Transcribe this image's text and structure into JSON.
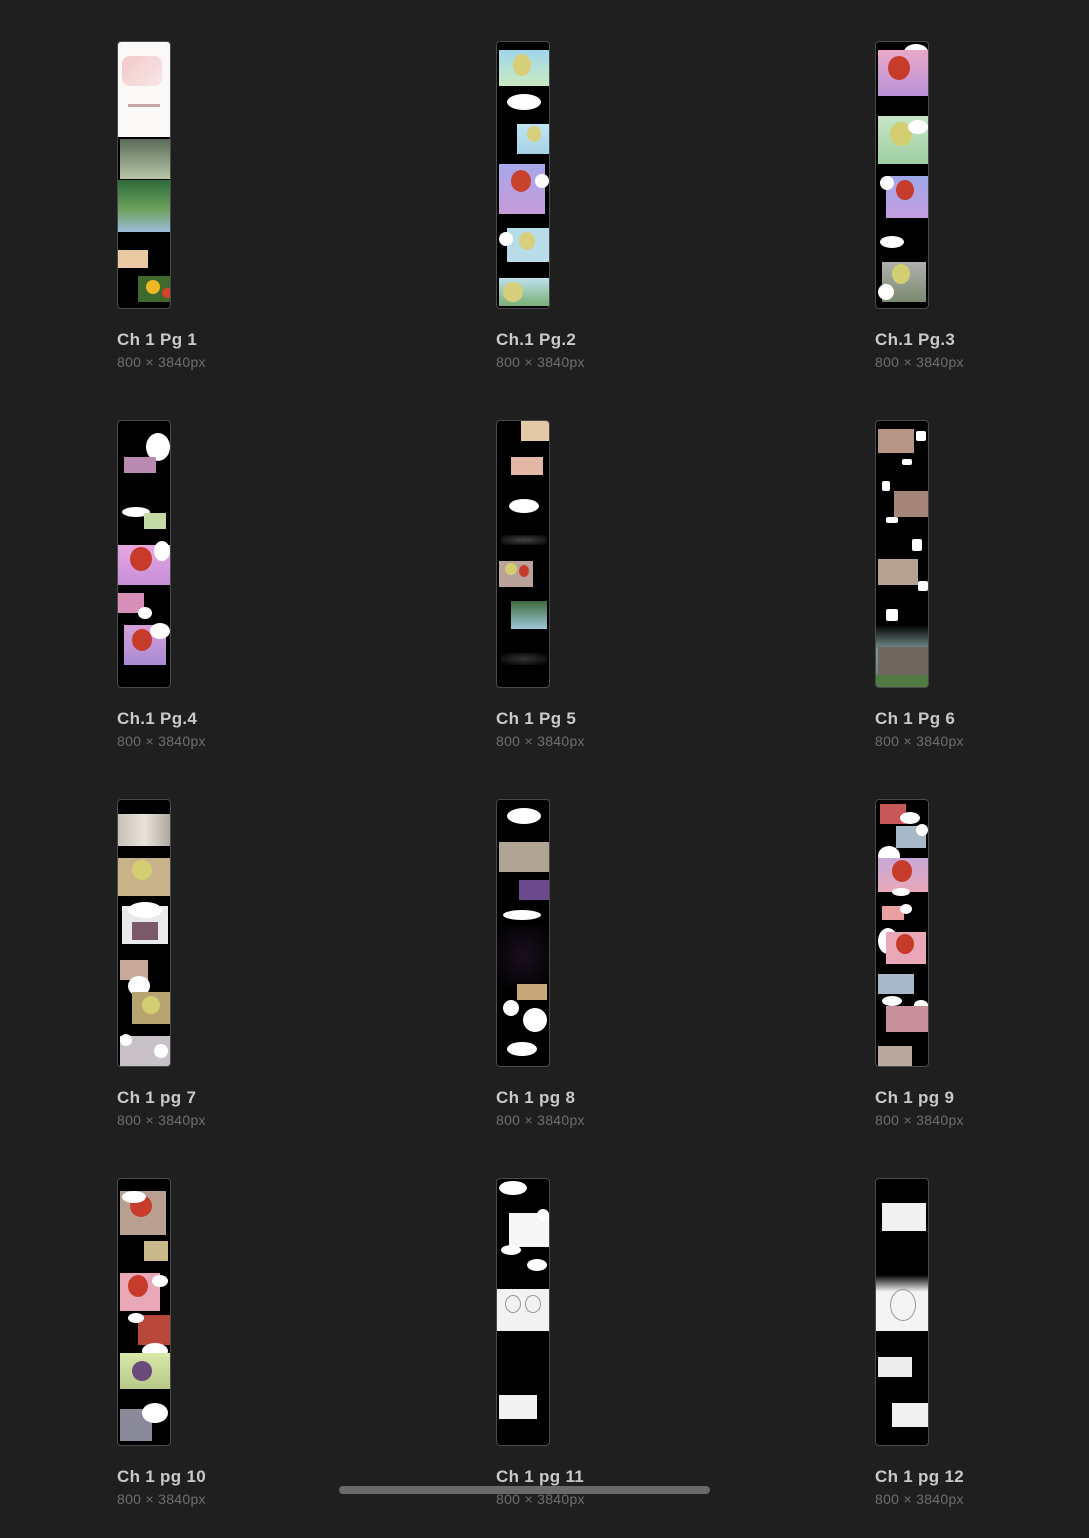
{
  "pages": [
    {
      "title": "Ch 1 Pg 1",
      "dims": "800 × 3840px"
    },
    {
      "title": "Ch.1 Pg.2",
      "dims": "800 × 3840px"
    },
    {
      "title": "Ch.1 Pg.3",
      "dims": "800 × 3840px"
    },
    {
      "title": "Ch.1 Pg.4",
      "dims": "800 × 3840px"
    },
    {
      "title": "Ch 1 Pg 5",
      "dims": "800 × 3840px"
    },
    {
      "title": "Ch 1 Pg 6",
      "dims": "800 × 3840px"
    },
    {
      "title": "Ch 1 pg 7",
      "dims": "800 × 3840px"
    },
    {
      "title": "Ch 1 pg 8",
      "dims": "800 × 3840px"
    },
    {
      "title": "Ch 1 pg 9",
      "dims": "800 × 3840px"
    },
    {
      "title": "Ch 1 pg 10",
      "dims": "800 × 3840px"
    },
    {
      "title": "Ch 1 pg 11",
      "dims": "800 × 3840px"
    },
    {
      "title": "Ch 1 pg 12",
      "dims": "800 × 3840px"
    }
  ]
}
